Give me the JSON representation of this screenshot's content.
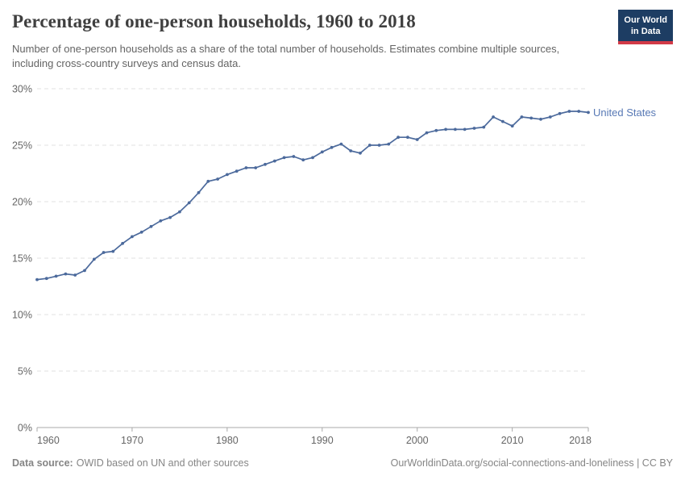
{
  "header": {
    "logo": {
      "line1": "Our World",
      "line2": "in Data"
    }
  },
  "chart_data": {
    "type": "line",
    "title": "Percentage of one-person households, 1960 to 2018",
    "subtitle": "Number of one-person households as a share of the total number of households. Estimates combine multiple sources, including cross-country surveys and census data.",
    "xlabel": "",
    "ylabel": "",
    "xlim": [
      1960,
      2018
    ],
    "ylim": [
      0,
      30
    ],
    "grid": "horizontal-dashed",
    "legend_position": "end-of-line",
    "x_ticks": [
      1960,
      1970,
      1980,
      1990,
      2000,
      2010,
      2018
    ],
    "y_ticks": [
      0,
      5,
      10,
      15,
      20,
      25,
      30
    ],
    "y_tick_suffix": "%",
    "series": [
      {
        "name": "United States",
        "color": "#4c6a9c",
        "x": [
          1960,
          1961,
          1962,
          1963,
          1964,
          1965,
          1966,
          1967,
          1968,
          1969,
          1970,
          1971,
          1972,
          1973,
          1974,
          1975,
          1976,
          1977,
          1978,
          1979,
          1980,
          1981,
          1982,
          1983,
          1984,
          1985,
          1986,
          1987,
          1988,
          1989,
          1990,
          1991,
          1992,
          1993,
          1994,
          1995,
          1996,
          1997,
          1998,
          1999,
          2000,
          2001,
          2002,
          2003,
          2004,
          2005,
          2006,
          2007,
          2008,
          2009,
          2010,
          2011,
          2012,
          2013,
          2014,
          2015,
          2016,
          2017,
          2018
        ],
        "values": [
          13.1,
          13.2,
          13.4,
          13.6,
          13.5,
          13.9,
          14.9,
          15.5,
          15.6,
          16.3,
          16.9,
          17.3,
          17.8,
          18.3,
          18.6,
          19.1,
          19.9,
          20.8,
          21.8,
          22.0,
          22.4,
          22.7,
          23.0,
          23.0,
          23.3,
          23.6,
          23.9,
          24.0,
          23.7,
          23.9,
          24.4,
          24.8,
          25.1,
          24.5,
          24.3,
          25.0,
          25.0,
          25.1,
          25.7,
          25.7,
          25.5,
          26.1,
          26.3,
          26.4,
          26.4,
          26.4,
          26.5,
          26.6,
          27.5,
          27.1,
          26.7,
          27.5,
          27.4,
          27.3,
          27.5,
          27.8,
          28.0,
          28.0,
          27.9
        ]
      }
    ]
  },
  "footer": {
    "source_label": "Data source:",
    "source_text": "OWID based on UN and other sources",
    "link_text": "OurWorldinData.org/social-connections-and-loneliness | CC BY"
  },
  "colors": {
    "line": "#4c6a9c",
    "entity_label": "#5879b5",
    "grid": "#e2e2e2",
    "axis": "#a8a8a8",
    "tick_label": "#666666",
    "title": "#3f3f3f",
    "subtitle": "#646464",
    "footer": "#858585",
    "logo_bg": "#1d3d63",
    "logo_stripe": "#d23a47"
  }
}
